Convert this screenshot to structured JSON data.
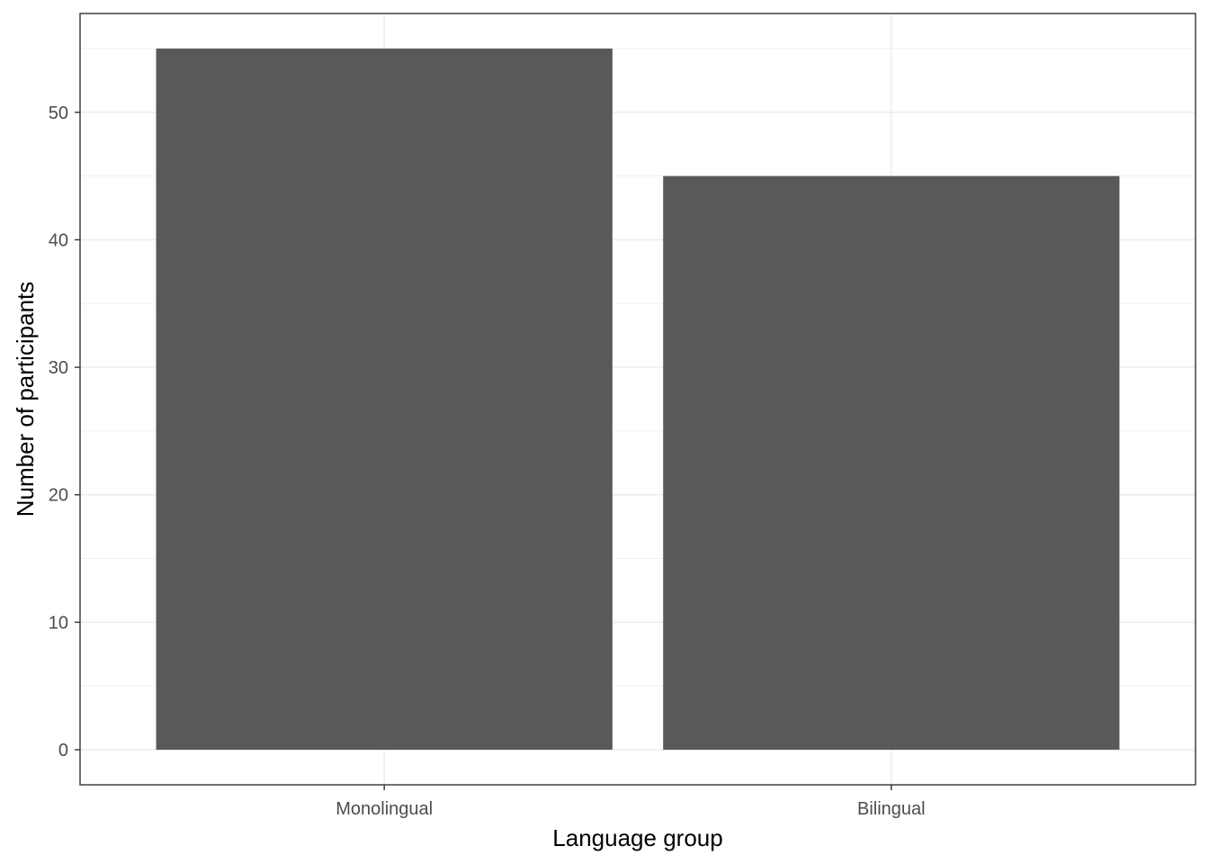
{
  "chart_data": {
    "type": "bar",
    "categories": [
      "Monolingual",
      "Bilingual"
    ],
    "values": [
      55,
      45
    ],
    "title": "",
    "xlabel": "Language group",
    "ylabel": "Number of participants",
    "ylim": [
      -2.75,
      57.75
    ],
    "yticks": [
      0,
      10,
      20,
      30,
      40,
      50
    ],
    "grid": true,
    "legend": "none",
    "bar_color": "#595959",
    "panel_border_color": "#333333",
    "grid_major_color": "#ebebeb",
    "grid_minor_color": "#f2f2f2"
  }
}
